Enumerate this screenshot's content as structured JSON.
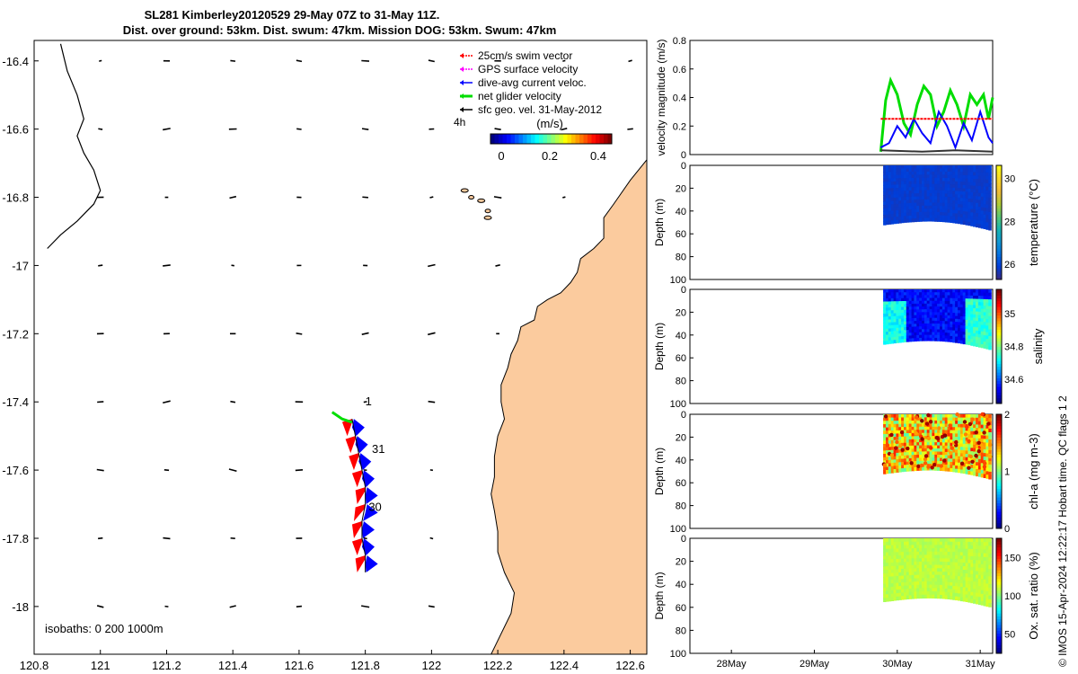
{
  "title": {
    "line1": "SL281 Kimberley20120529 29-May 07Z to 31-May 11Z.",
    "line2": "Dist. over ground: 53km. Dist. swum: 47km. Mission DOG: 53km. Swum: 47km"
  },
  "credit": "© IMOS 15-Apr-2024 12:22:17 Hobart time. QC flags 1  2",
  "colors": {
    "land": "#fbcb9e",
    "swim": "#ff0000",
    "gps": "#ff00ff",
    "current": "#0000ff",
    "net": "#00dd00",
    "geo": "#000000"
  },
  "chart_data": [
    {
      "type": "map",
      "id": "track_map",
      "xlim": [
        120.8,
        122.65
      ],
      "ylim": [
        -18.14,
        -16.34
      ],
      "xticks": [
        120.8,
        121,
        121.2,
        121.4,
        121.6,
        121.8,
        122,
        122.2,
        122.4,
        122.6
      ],
      "yticks": [
        -16.4,
        -16.6,
        -16.8,
        -17,
        -17.2,
        -17.4,
        -17.6,
        -17.8,
        -18
      ],
      "xtick_labels": [
        "120.8",
        "121",
        "121.2",
        "121.4",
        "121.6",
        "121.8",
        "122",
        "122.2",
        "122.4",
        "122.6"
      ],
      "ytick_labels": [
        "-16.4",
        "-16.6",
        "-16.8",
        "-17",
        "-17.2",
        "-17.4",
        "-17.6",
        "-17.8",
        "-18"
      ],
      "legend": {
        "placement": "top-right",
        "items": [
          {
            "label": "25cm/s swim vector",
            "color": "#ff0000"
          },
          {
            "label": "GPS surface velocity",
            "color": "#ff00ff"
          },
          {
            "label": "dive-avg current veloc.",
            "color": "#0000ff"
          },
          {
            "label": "net glider velocity",
            "color": "#00dd00"
          },
          {
            "label": "sfc geo. vel. 31-May-2012",
            "color": "#000000"
          }
        ]
      },
      "time_step_label": "4h",
      "colorbar": {
        "label": "(m/s)",
        "min": 0,
        "max": 0.5,
        "ticks": [
          0,
          0.2,
          0.4
        ],
        "tick_labels": [
          "0",
          "0.2",
          "0.4"
        ]
      },
      "isobaths_label": "isobaths: 0   200  1000m",
      "day_labels": [
        {
          "text": "1",
          "lon": 121.8,
          "lat": -17.41
        },
        {
          "text": "31",
          "lon": 121.82,
          "lat": -17.55
        },
        {
          "text": "30",
          "lon": 121.81,
          "lat": -17.72
        }
      ],
      "isobath_line": [
        [
          120.88,
          -16.35
        ],
        [
          120.9,
          -16.43
        ],
        [
          120.93,
          -16.5
        ],
        [
          120.95,
          -16.57
        ],
        [
          120.93,
          -16.62
        ],
        [
          120.95,
          -16.67
        ],
        [
          120.98,
          -16.72
        ],
        [
          121,
          -16.78
        ],
        [
          120.98,
          -16.82
        ],
        [
          120.93,
          -16.87
        ],
        [
          120.88,
          -16.91
        ],
        [
          120.84,
          -16.95
        ]
      ],
      "track": [
        [
          121.76,
          -17.45
        ],
        [
          121.77,
          -17.5
        ],
        [
          121.78,
          -17.55
        ],
        [
          121.79,
          -17.6
        ],
        [
          121.8,
          -17.65
        ],
        [
          121.8,
          -17.7
        ],
        [
          121.79,
          -17.75
        ],
        [
          121.79,
          -17.8
        ],
        [
          121.8,
          -17.85
        ],
        [
          121.8,
          -17.9
        ]
      ],
      "coast": [
        [
          122.65,
          -16.69
        ],
        [
          122.6,
          -16.75
        ],
        [
          122.55,
          -16.82
        ],
        [
          122.52,
          -16.86
        ],
        [
          122.52,
          -16.92
        ],
        [
          122.49,
          -16.95
        ],
        [
          122.45,
          -16.98
        ],
        [
          122.44,
          -17.02
        ],
        [
          122.42,
          -17.05
        ],
        [
          122.39,
          -17.08
        ],
        [
          122.35,
          -17.1
        ],
        [
          122.32,
          -17.12
        ],
        [
          122.31,
          -17.16
        ],
        [
          122.27,
          -17.18
        ],
        [
          122.26,
          -17.22
        ],
        [
          122.24,
          -17.26
        ],
        [
          122.23,
          -17.3
        ],
        [
          122.21,
          -17.35
        ],
        [
          122.21,
          -17.4
        ],
        [
          122.22,
          -17.45
        ],
        [
          122.2,
          -17.5
        ],
        [
          122.19,
          -17.56
        ],
        [
          122.19,
          -17.62
        ],
        [
          122.18,
          -17.67
        ],
        [
          122.19,
          -17.72
        ],
        [
          122.2,
          -17.78
        ],
        [
          122.2,
          -17.84
        ],
        [
          122.22,
          -17.9
        ],
        [
          122.25,
          -17.96
        ],
        [
          122.24,
          -18.02
        ],
        [
          122.22,
          -18.06
        ],
        [
          122.2,
          -18.1
        ],
        [
          122.18,
          -18.14
        ]
      ]
    },
    {
      "type": "line",
      "id": "velocity",
      "ylabel": "velocity magnitude (m/s)",
      "xlim": [
        0,
        3.65
      ],
      "ylim": [
        0,
        0.8
      ],
      "yticks": [
        0,
        0.2,
        0.4,
        0.6,
        0.8
      ],
      "ytick_labels": [
        "0",
        "0.2",
        "0.4",
        "0.6",
        "0.8"
      ],
      "series": [
        {
          "name": "net glider velocity",
          "color": "#00dd00",
          "x": [
            2.3,
            2.36,
            2.42,
            2.5,
            2.58,
            2.66,
            2.74,
            2.82,
            2.9,
            2.98,
            3.06,
            3.14,
            3.22,
            3.3,
            3.38,
            3.46,
            3.54,
            3.6,
            3.65
          ],
          "values": [
            0.02,
            0.38,
            0.52,
            0.42,
            0.22,
            0.14,
            0.35,
            0.48,
            0.42,
            0.2,
            0.3,
            0.45,
            0.35,
            0.2,
            0.42,
            0.35,
            0.42,
            0.25,
            0.4
          ]
        },
        {
          "name": "dive-avg current veloc.",
          "color": "#0000ff",
          "x": [
            2.3,
            2.4,
            2.5,
            2.6,
            2.7,
            2.8,
            2.9,
            3.0,
            3.1,
            3.2,
            3.3,
            3.4,
            3.5,
            3.6,
            3.65
          ],
          "values": [
            0.05,
            0.08,
            0.2,
            0.12,
            0.25,
            0.15,
            0.08,
            0.3,
            0.2,
            0.05,
            0.22,
            0.1,
            0.3,
            0.12,
            0.08
          ]
        },
        {
          "name": "swim",
          "color": "#ff0000",
          "x": [
            2.3,
            3.65
          ],
          "values": [
            0.25,
            0.25
          ]
        },
        {
          "name": "sfc geo",
          "color": "#333333",
          "x": [
            2.3,
            2.8,
            3.2,
            3.65
          ],
          "values": [
            0.03,
            0.02,
            0.03,
            0.02
          ]
        }
      ]
    },
    {
      "type": "heatmap",
      "id": "temperature",
      "ylabel": "Depth (m)",
      "cbar_label": "temperature (°C)",
      "cbar_min": 25.3,
      "cbar_max": 30.6,
      "cbar_ticks": [
        26,
        28,
        30
      ],
      "cbar_tick_labels": [
        "26",
        "28",
        "30"
      ],
      "xlim": [
        0,
        3.65
      ],
      "ylim": [
        100,
        0
      ],
      "yticks": [
        0,
        20,
        40,
        60,
        80,
        100
      ],
      "ytick_labels": [
        "0",
        "20",
        "40",
        "60",
        "80",
        "100"
      ],
      "time_start": 2.33,
      "time_end": 3.63,
      "bottom_depth": 52,
      "fill_value": 25.8
    },
    {
      "type": "heatmap",
      "id": "salinity",
      "ylabel": "Depth (m)",
      "cbar_label": "salinity",
      "cbar_min": 34.45,
      "cbar_max": 35.15,
      "cbar_ticks": [
        34.6,
        34.8,
        35
      ],
      "cbar_tick_labels": [
        "34.6",
        "34.8",
        "35"
      ],
      "xlim": [
        0,
        3.65
      ],
      "ylim": [
        100,
        0
      ],
      "yticks": [
        0,
        20,
        40,
        60,
        80,
        100
      ],
      "ytick_labels": [
        "0",
        "20",
        "40",
        "60",
        "80",
        "100"
      ],
      "time_start": 2.33,
      "time_end": 3.63,
      "bottom_depth": 48,
      "fill_value": 34.52
    },
    {
      "type": "heatmap",
      "id": "chla",
      "ylabel": "Depth (m)",
      "cbar_label": "chl-a (mg m-3)",
      "cbar_min": 0,
      "cbar_max": 2,
      "cbar_ticks": [
        0,
        1,
        2
      ],
      "cbar_tick_labels": [
        "0",
        "1",
        "2"
      ],
      "xlim": [
        0,
        3.65
      ],
      "ylim": [
        100,
        0
      ],
      "yticks": [
        0,
        20,
        40,
        60,
        80,
        100
      ],
      "ytick_labels": [
        "0",
        "20",
        "40",
        "60",
        "80",
        "100"
      ],
      "time_start": 2.33,
      "time_end": 3.63,
      "bottom_depth": 52,
      "fill_value": 1.2
    },
    {
      "type": "heatmap",
      "id": "oxygen",
      "ylabel": "Depth (m)",
      "cbar_label": "Ox. sat. ratio (%)",
      "cbar_min": 25,
      "cbar_max": 175,
      "cbar_ticks": [
        50,
        100,
        150
      ],
      "cbar_tick_labels": [
        "50",
        "100",
        "150"
      ],
      "xlim": [
        0,
        3.65
      ],
      "ylim": [
        100,
        0
      ],
      "yticks": [
        0,
        20,
        40,
        60,
        80,
        100
      ],
      "ytick_labels": [
        "0",
        "20",
        "40",
        "60",
        "80",
        "100"
      ],
      "xticks": [
        0.5,
        1.5,
        2.5,
        3.5
      ],
      "xtick_labels": [
        "28May",
        "29May",
        "30May",
        "31May"
      ],
      "time_start": 2.33,
      "time_end": 3.63,
      "bottom_depth": 55,
      "fill_value": 105
    }
  ]
}
